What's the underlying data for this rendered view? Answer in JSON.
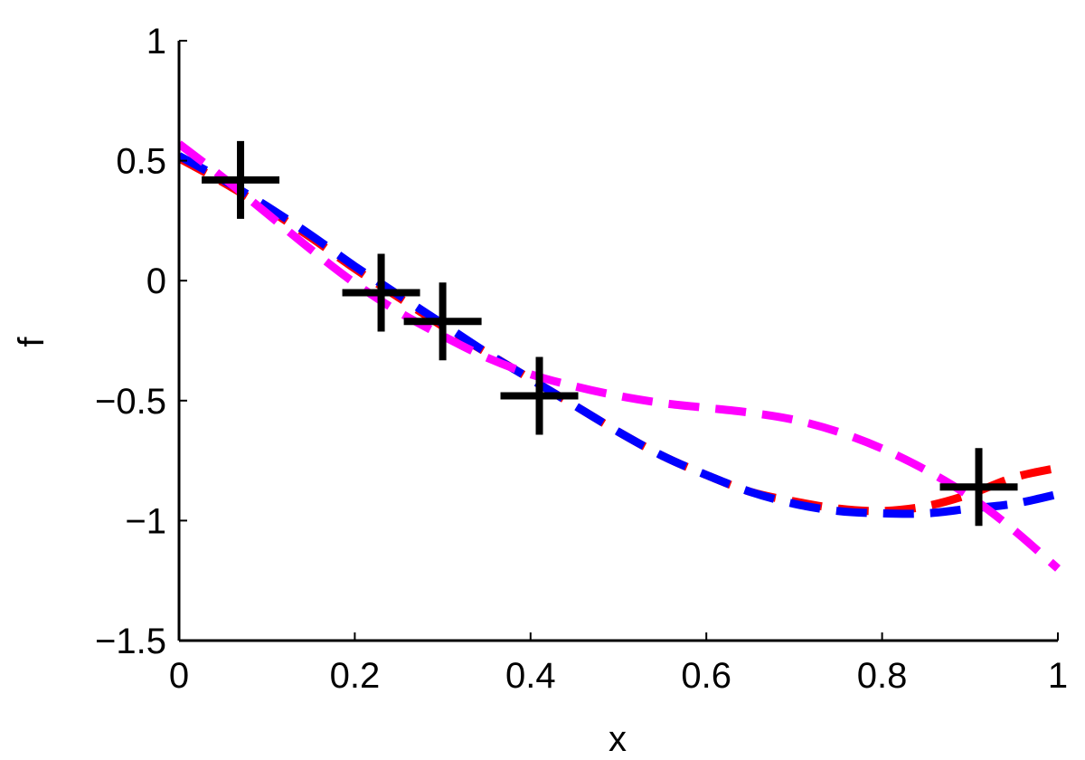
{
  "chart_data": {
    "type": "line",
    "title": "",
    "xlabel": "x",
    "ylabel": "f",
    "xlim": [
      0,
      1
    ],
    "ylim": [
      -1.5,
      1
    ],
    "xticks": [
      0,
      0.2,
      0.4,
      0.6,
      0.8,
      1
    ],
    "xtick_labels": [
      "0",
      "0.2",
      "0.4",
      "0.6",
      "0.8",
      "1"
    ],
    "yticks": [
      -1.5,
      -1,
      -0.5,
      0,
      0.5,
      1
    ],
    "ytick_labels": [
      "−1.5",
      "−1",
      "−0.5",
      "0",
      "0.5",
      "1"
    ],
    "grid": false,
    "series": [
      {
        "style": "dashed",
        "color": "#ff0000",
        "x": [
          0,
          0.05,
          0.1,
          0.15,
          0.2,
          0.25,
          0.3,
          0.35,
          0.4,
          0.45,
          0.5,
          0.55,
          0.6,
          0.65,
          0.7,
          0.75,
          0.8,
          0.85,
          0.9,
          0.95,
          1
        ],
        "y": [
          0.51,
          0.41,
          0.3,
          0.18,
          0.05,
          -0.07,
          -0.19,
          -0.3,
          -0.41,
          -0.52,
          -0.63,
          -0.73,
          -0.81,
          -0.88,
          -0.92,
          -0.95,
          -0.96,
          -0.94,
          -0.89,
          -0.82,
          -0.78
        ]
      },
      {
        "style": "dashed",
        "color": "#0000ff",
        "x": [
          0,
          0.05,
          0.1,
          0.15,
          0.2,
          0.25,
          0.3,
          0.35,
          0.4,
          0.45,
          0.5,
          0.55,
          0.6,
          0.65,
          0.7,
          0.75,
          0.8,
          0.85,
          0.9,
          0.95,
          1
        ],
        "y": [
          0.52,
          0.42,
          0.31,
          0.19,
          0.06,
          -0.06,
          -0.18,
          -0.3,
          -0.41,
          -0.52,
          -0.63,
          -0.73,
          -0.81,
          -0.88,
          -0.93,
          -0.96,
          -0.97,
          -0.97,
          -0.95,
          -0.93,
          -0.89
        ]
      },
      {
        "style": "dashed",
        "color": "#ff00ff",
        "x": [
          0,
          0.05,
          0.1,
          0.15,
          0.2,
          0.25,
          0.3,
          0.35,
          0.4,
          0.45,
          0.5,
          0.55,
          0.6,
          0.65,
          0.7,
          0.75,
          0.8,
          0.85,
          0.9,
          0.95,
          1
        ],
        "y": [
          0.57,
          0.43,
          0.28,
          0.13,
          -0.01,
          -0.13,
          -0.23,
          -0.32,
          -0.39,
          -0.44,
          -0.48,
          -0.51,
          -0.53,
          -0.55,
          -0.58,
          -0.63,
          -0.7,
          -0.79,
          -0.9,
          -1.04,
          -1.2
        ]
      }
    ],
    "markers": {
      "symbol": "+",
      "color": "#000000",
      "x": [
        0.07,
        0.23,
        0.3,
        0.41,
        0.91
      ],
      "y": [
        0.42,
        -0.05,
        -0.17,
        -0.48,
        -0.86
      ]
    }
  }
}
